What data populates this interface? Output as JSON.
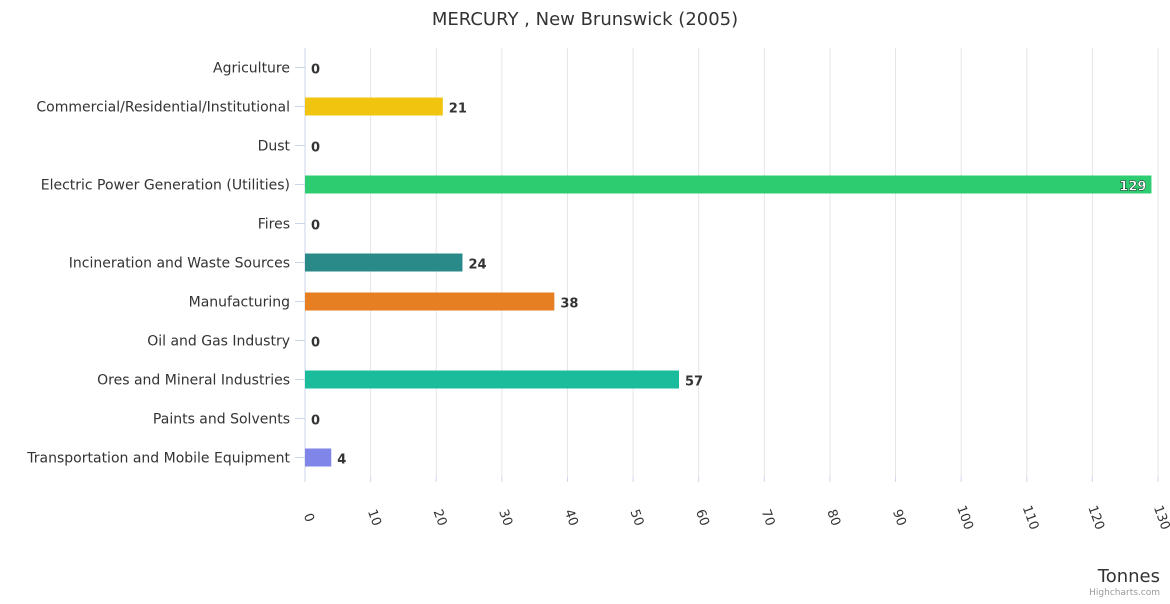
{
  "chart_data": {
    "type": "bar",
    "orientation": "horizontal",
    "title": "MERCURY , New Brunswick (2005)",
    "xlabel": "",
    "ylabel": "Tonnes",
    "credits": "Highcharts.com",
    "categories": [
      "Agriculture",
      "Commercial/Residential/Institutional",
      "Dust",
      "Electric Power Generation (Utilities)",
      "Fires",
      "Incineration and Waste Sources",
      "Manufacturing",
      "Oil and Gas Industry",
      "Ores and Mineral Industries",
      "Paints and Solvents",
      "Transportation and Mobile Equipment"
    ],
    "values": [
      0,
      21,
      0,
      129,
      0,
      24,
      38,
      0,
      57,
      0,
      4
    ],
    "colors": [
      "#1abc9c",
      "#f1c40f",
      "#2c3e50",
      "#2ecc71",
      "#e74c3c",
      "#2a8a8a",
      "#e67e22",
      "#34495e",
      "#1abc9c",
      "#95a5a6",
      "#8085e9"
    ],
    "value_axis": {
      "min": 0,
      "max": 130,
      "tick_interval": 10,
      "ticks": [
        "0",
        "10",
        "20",
        "30",
        "40",
        "50",
        "60",
        "70",
        "80",
        "90",
        "100",
        "110",
        "120",
        "130"
      ]
    },
    "grid": true,
    "legend": "none"
  }
}
